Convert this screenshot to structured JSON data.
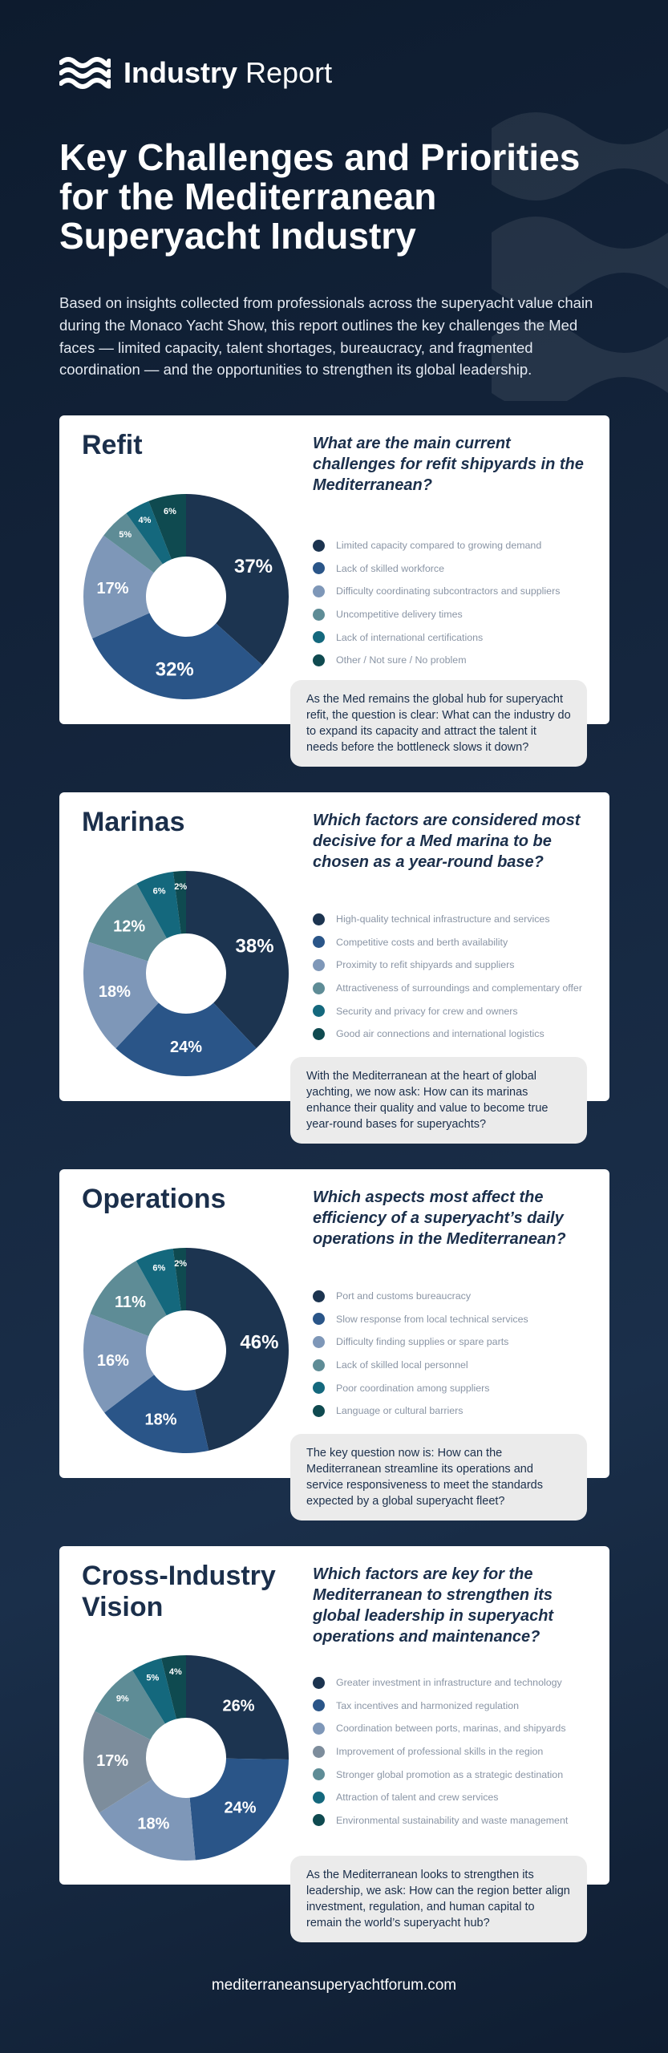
{
  "header": {
    "brand_bold": "Industry",
    "brand_light": "Report",
    "title": "Key Challenges and Priorities for the Mediterranean Superyacht Industry",
    "intro": "Based on insights collected from professionals across the superyacht value chain during the Monaco Yacht Show, this report outlines the key challenges the Med faces — limited capacity, talent shortages, bureaucracy, and fragmented coordination — and the opportunities to strengthen its global leadership."
  },
  "colors": [
    "#1c3450",
    "#2a5588",
    "#7e97b8",
    "#5e8c96",
    "#14687d",
    "#0f4a50"
  ],
  "cards": [
    {
      "title": "Refit",
      "question": "What are the main current challenges for refit shipyards in the Mediterranean?",
      "callout": "As the Med remains the global hub for superyacht refit, the question is clear: What can the industry do to expand its capacity and attract the talent it needs before the bottleneck slows it down?"
    },
    {
      "title": "Marinas",
      "question": "Which factors are considered most decisive for a Med marina to be chosen as a year-round base?",
      "callout": "With the Mediterranean at the heart of global yachting, we now ask: How can its marinas enhance their quality and value to become true year-round bases for superyachts?"
    },
    {
      "title": "Operations",
      "question": "Which aspects most affect the efficiency of a superyacht’s daily operations in the Mediterranean?",
      "callout": "The key question now is: How can the Mediterranean streamline its operations and service responsiveness to meet the standards expected by a global superyacht fleet?"
    },
    {
      "title": "Cross-Industry Vision",
      "question": "Which factors are key for the Mediterranean to strengthen its global leadership in superyacht operations and maintenance?",
      "callout": "As the Mediterranean looks to strengthen its leadership, we ask: How can the region better align investment, regulation, and human capital to remain the world’s superyacht hub?"
    }
  ],
  "chart_data": [
    {
      "type": "pie",
      "title": "Refit",
      "categories": [
        "Limited capacity compared to growing demand",
        "Lack of skilled workforce",
        "Difficulty coordinating subcontractors and suppliers",
        "Uncompetitive delivery times",
        "Lack of international certifications",
        "Other / Not sure / No problem"
      ],
      "values": [
        37,
        32,
        17,
        5,
        4,
        6
      ],
      "labels": [
        "37%",
        "32%",
        "17%",
        "5%",
        "4%",
        "6%"
      ],
      "colors": [
        "#1c3450",
        "#2a5588",
        "#7e97b8",
        "#5e8c96",
        "#14687d",
        "#0f4a50"
      ]
    },
    {
      "type": "pie",
      "title": "Marinas",
      "categories": [
        "High-quality technical infrastructure and services",
        "Competitive costs and berth availability",
        "Proximity to refit shipyards and suppliers",
        "Attractiveness of surroundings and complementary offer",
        "Security and privacy for crew and owners",
        "Good air connections and international logistics"
      ],
      "values": [
        38,
        24,
        18,
        12,
        6,
        2
      ],
      "labels": [
        "38%",
        "24%",
        "18%",
        "12%",
        "6%",
        "2%"
      ],
      "colors": [
        "#1c3450",
        "#2a5588",
        "#7e97b8",
        "#5e8c96",
        "#14687d",
        "#0f4a50"
      ]
    },
    {
      "type": "pie",
      "title": "Operations",
      "categories": [
        "Port and customs bureaucracy",
        "Slow response from local technical services",
        "Difficulty finding supplies or spare parts",
        "Lack of skilled local personnel",
        "Poor coordination among suppliers",
        "Language or cultural barriers"
      ],
      "values": [
        46,
        18,
        16,
        11,
        6,
        2
      ],
      "labels": [
        "46%",
        "18%",
        "16%",
        "11%",
        "6%",
        "2%"
      ],
      "colors": [
        "#1c3450",
        "#2a5588",
        "#7e97b8",
        "#5e8c96",
        "#14687d",
        "#0f4a50"
      ]
    },
    {
      "type": "pie",
      "title": "Cross-Industry Vision",
      "categories": [
        "Greater investment in infrastructure and technology",
        "Tax incentives and harmonized regulation",
        "Coordination between ports, marinas, and shipyards",
        "Improvement of professional skills in the region",
        "Stronger global promotion as a strategic destination",
        "Attraction of talent and crew services",
        "Environmental sustainability and waste management"
      ],
      "values": [
        26,
        24,
        18,
        17,
        9,
        5,
        4
      ],
      "labels": [
        "26%",
        "24%",
        "18%",
        "17%",
        "9%",
        "5%",
        "4%"
      ],
      "colors": [
        "#1c3450",
        "#2a5588",
        "#7e97b8",
        "#7d8d9c",
        "#5e8c96",
        "#14687d",
        "#0f4a50"
      ]
    }
  ],
  "footer": "mediterraneansuperyachtforum.com"
}
